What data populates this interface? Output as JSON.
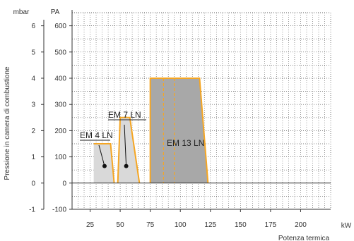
{
  "chart_data": {
    "type": "area",
    "xlabel": "Potenza termica",
    "x_unit": "kW",
    "ylabel": "Pressione in camera di combustione",
    "y_unit_left": "mbar",
    "y_unit_right": "PA",
    "xlim": [
      10,
      225
    ],
    "ylim": [
      -100,
      650
    ],
    "x_ticks": [
      25,
      50,
      75,
      100,
      125,
      150,
      175,
      200
    ],
    "y_ticks_pa": [
      -100,
      0,
      100,
      200,
      300,
      400,
      500,
      600
    ],
    "y_ticks_mbar": [
      -1,
      0,
      1,
      2,
      3,
      4,
      5,
      6
    ],
    "grid": true,
    "series": [
      {
        "name": "EM 4 LN",
        "fill": "#d9d9d9",
        "polygon": [
          [
            28,
            0
          ],
          [
            28,
            150
          ],
          [
            42,
            150
          ],
          [
            45,
            0
          ]
        ],
        "outline": [
          [
            28,
            150
          ],
          [
            42,
            150
          ],
          [
            45,
            0
          ]
        ],
        "marker": [
          37,
          65
        ]
      },
      {
        "name": "EM 7 LN",
        "fill": "#d9d9d9",
        "polygon": [
          [
            48,
            0
          ],
          [
            50,
            250
          ],
          [
            58,
            250
          ],
          [
            66,
            0
          ]
        ],
        "outline": [
          [
            48,
            0
          ],
          [
            50,
            250
          ],
          [
            58,
            250
          ],
          [
            66,
            0
          ]
        ],
        "marker": [
          55,
          65
        ]
      },
      {
        "name": "EM 13 LN",
        "fill": "#a8a8a8",
        "polygon": [
          [
            75,
            0
          ],
          [
            75,
            400
          ],
          [
            116,
            400
          ],
          [
            123,
            0
          ]
        ],
        "outline": [
          [
            75,
            0
          ],
          [
            75,
            400
          ],
          [
            116,
            400
          ],
          [
            123,
            0
          ]
        ],
        "dashed_x": [
          86,
          95
        ]
      }
    ],
    "colors": {
      "outline": "#f5a623",
      "grid": "#555555",
      "axis": "#333333"
    }
  }
}
